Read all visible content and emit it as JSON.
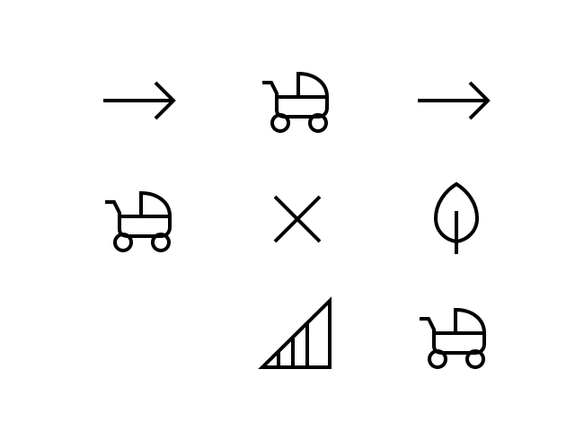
{
  "icon_color": "#000000",
  "background": "#ffffff",
  "grid": [
    {
      "row": 1,
      "col": 1,
      "icon": "arrow-right-icon"
    },
    {
      "row": 1,
      "col": 2,
      "icon": "baby-carriage-icon"
    },
    {
      "row": 1,
      "col": 3,
      "icon": "arrow-right-icon"
    },
    {
      "row": 2,
      "col": 1,
      "icon": "baby-carriage-icon"
    },
    {
      "row": 2,
      "col": 2,
      "icon": "close-icon"
    },
    {
      "row": 2,
      "col": 3,
      "icon": "leaf-icon"
    },
    {
      "row": 3,
      "col": 1,
      "icon": "empty"
    },
    {
      "row": 3,
      "col": 2,
      "icon": "signal-strength-icon"
    },
    {
      "row": 3,
      "col": 3,
      "icon": "baby-carriage-icon"
    }
  ]
}
